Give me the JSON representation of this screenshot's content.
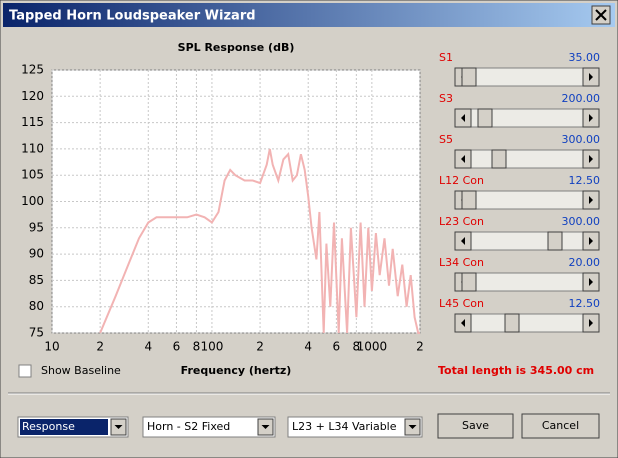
{
  "window": {
    "title": "Tapped Horn Loudspeaker Wizard"
  },
  "chart_data": {
    "type": "line",
    "title": "SPL Response (dB)",
    "x_label": "Frequency (hertz)",
    "xscale": "log",
    "grid": true,
    "color": "#f2b3b3",
    "xlim": [
      10,
      2000
    ],
    "xticks": [
      10,
      {
        "value": 20,
        "label": "2"
      },
      {
        "value": 40,
        "label": "4"
      },
      {
        "value": 60,
        "label": "6"
      },
      {
        "value": 80,
        "label": "8"
      },
      100,
      {
        "value": 200,
        "label": "2"
      },
      {
        "value": 400,
        "label": "4"
      },
      {
        "value": 600,
        "label": "6"
      },
      {
        "value": 800,
        "label": "8"
      },
      1000,
      {
        "value": 2000,
        "label": "2"
      }
    ],
    "ylim": [
      75,
      125
    ],
    "yticks": [
      75,
      80,
      85,
      90,
      95,
      100,
      105,
      110,
      115,
      120,
      125
    ],
    "x": [
      20,
      25,
      30,
      35,
      40,
      45,
      50,
      60,
      70,
      80,
      90,
      100,
      110,
      120,
      130,
      140,
      160,
      180,
      200,
      220,
      230,
      240,
      260,
      280,
      300,
      320,
      340,
      360,
      380,
      400,
      420,
      450,
      470,
      500,
      520,
      550,
      580,
      620,
      650,
      700,
      740,
      800,
      850,
      900,
      950,
      1000,
      1060,
      1120,
      1200,
      1280,
      1350,
      1450,
      1550,
      1650,
      1750,
      1850,
      1950,
      2000
    ],
    "values": [
      75,
      82,
      88,
      93,
      96,
      97,
      97,
      97,
      97,
      97.5,
      97,
      96,
      98,
      104,
      106,
      105,
      104,
      104,
      103.5,
      107,
      110,
      107,
      104,
      108,
      109,
      104,
      105,
      109,
      106,
      101,
      95,
      89,
      98,
      75,
      92,
      80,
      96,
      75,
      93,
      75,
      95,
      78,
      96,
      80,
      95,
      83,
      94,
      86,
      93,
      84,
      91,
      82,
      88,
      80,
      86,
      78,
      75,
      75
    ]
  },
  "sliders": [
    {
      "label": "S1",
      "value": "35.00"
    },
    {
      "label": "S3",
      "value": "200.00"
    },
    {
      "label": "S5",
      "value": "300.00"
    },
    {
      "label": "L12 Con",
      "value": "12.50"
    },
    {
      "label": "L23 Con",
      "value": "300.00"
    },
    {
      "label": "L34 Con",
      "value": "20.00"
    },
    {
      "label": "L45 Con",
      "value": "12.50"
    }
  ],
  "checkbox": {
    "label": "Show Baseline"
  },
  "status": "Total length is 345.00 cm",
  "dropdowns": [
    "Response",
    "Horn - S2 Fixed",
    "L23 + L34 Variable"
  ],
  "buttons": [
    "Save",
    "Cancel"
  ]
}
